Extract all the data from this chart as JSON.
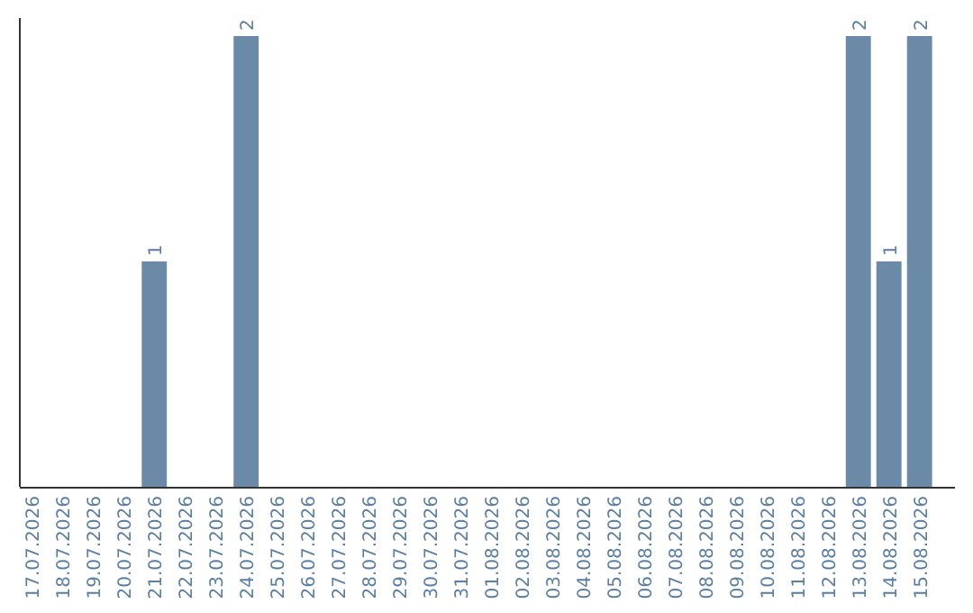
{
  "chart_data": {
    "type": "bar",
    "categories": [
      "17.07.2026",
      "18.07.2026",
      "19.07.2026",
      "20.07.2026",
      "21.07.2026",
      "22.07.2026",
      "23.07.2026",
      "24.07.2026",
      "25.07.2026",
      "26.07.2026",
      "27.07.2026",
      "28.07.2026",
      "29.07.2026",
      "30.07.2026",
      "31.07.2026",
      "01.08.2026",
      "02.08.2026",
      "03.08.2026",
      "04.08.2026",
      "05.08.2026",
      "06.08.2026",
      "07.08.2026",
      "08.08.2026",
      "09.08.2026",
      "10.08.2026",
      "11.08.2026",
      "12.08.2026",
      "13.08.2026",
      "14.08.2026",
      "15.08.2026"
    ],
    "values": [
      0,
      0,
      0,
      0,
      1,
      0,
      0,
      2,
      0,
      0,
      0,
      0,
      0,
      0,
      0,
      0,
      0,
      0,
      0,
      0,
      0,
      0,
      0,
      0,
      0,
      0,
      0,
      2,
      1,
      2
    ],
    "value_labels": [
      null,
      null,
      null,
      null,
      "1",
      null,
      null,
      "2",
      null,
      null,
      null,
      null,
      null,
      null,
      null,
      null,
      null,
      null,
      null,
      null,
      null,
      null,
      null,
      null,
      null,
      null,
      null,
      "2",
      "1",
      "2"
    ],
    "color": "#6b8aa8",
    "tick_labels": "x"
  }
}
